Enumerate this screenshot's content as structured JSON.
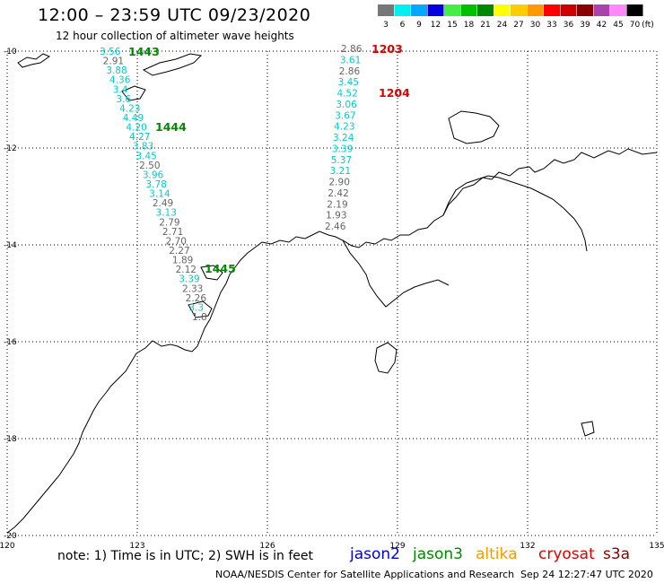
{
  "header": {
    "title": "12:00 – 23:59 UTC 09/23/2020",
    "subtitle": "12 hour collection of altimeter wave heights"
  },
  "legend": {
    "scale": [
      {
        "label": "3",
        "color": "#777777"
      },
      {
        "label": "6",
        "color": "#00f0f0"
      },
      {
        "label": "9",
        "color": "#00a8ff"
      },
      {
        "label": "12",
        "color": "#0000e0"
      },
      {
        "label": "15",
        "color": "#44ee44"
      },
      {
        "label": "18",
        "color": "#00c000"
      },
      {
        "label": "21",
        "color": "#008800"
      },
      {
        "label": "24",
        "color": "#ffff00"
      },
      {
        "label": "27",
        "color": "#ffcc00"
      },
      {
        "label": "30",
        "color": "#ff9900"
      },
      {
        "label": "33",
        "color": "#ff0000"
      },
      {
        "label": "36",
        "color": "#cc0000"
      },
      {
        "label": "39",
        "color": "#880000"
      },
      {
        "label": "42",
        "color": "#aa44aa"
      },
      {
        "label": "45",
        "color": "#ff88ff"
      },
      {
        "label": "70",
        "color": "#000000"
      }
    ],
    "unit": "(ft)"
  },
  "axes": {
    "lat_labels": [
      "-10",
      "-12",
      "-14",
      "-16",
      "-18",
      "-20"
    ],
    "lon_labels": [
      "120",
      "123",
      "126",
      "129",
      "132",
      "135"
    ]
  },
  "tracks": [
    {
      "id": "west",
      "points": [
        {
          "v": "3.56",
          "c": "#00cccc"
        },
        {
          "v": "2.91",
          "c": "#666666"
        },
        {
          "v": "3.88",
          "c": "#00cccc"
        },
        {
          "v": "4.36",
          "c": "#00cccc"
        },
        {
          "v": "3.4",
          "c": "#00cccc"
        },
        {
          "v": "3.6",
          "c": "#00cccc"
        },
        {
          "v": "4.23",
          "c": "#00cccc"
        },
        {
          "v": "4.49",
          "c": "#00cccc"
        },
        {
          "v": "4.20",
          "c": "#00cccc"
        },
        {
          "v": "4.27",
          "c": "#00cccc"
        },
        {
          "v": "3.83",
          "c": "#00cccc"
        },
        {
          "v": "3.45",
          "c": "#00cccc"
        },
        {
          "v": "2.50",
          "c": "#666666"
        },
        {
          "v": "3.96",
          "c": "#00cccc"
        },
        {
          "v": "3.78",
          "c": "#00cccc"
        },
        {
          "v": "3.14",
          "c": "#00cccc"
        },
        {
          "v": "2.49",
          "c": "#666666"
        },
        {
          "v": "3.13",
          "c": "#00cccc"
        },
        {
          "v": "2.79",
          "c": "#666666"
        },
        {
          "v": "2.71",
          "c": "#666666"
        },
        {
          "v": "2.70",
          "c": "#666666"
        },
        {
          "v": "2.27",
          "c": "#666666"
        },
        {
          "v": "1.89",
          "c": "#666666"
        },
        {
          "v": "2.12",
          "c": "#666666"
        },
        {
          "v": "3.39",
          "c": "#00cccc"
        },
        {
          "v": "2.33",
          "c": "#666666"
        },
        {
          "v": "2.26",
          "c": "#666666"
        },
        {
          "v": "3.3",
          "c": "#00cccc"
        },
        {
          "v": "1.8",
          "c": "#666666"
        }
      ]
    },
    {
      "id": "east",
      "points": [
        {
          "v": "2.86",
          "c": "#666666"
        },
        {
          "v": "3.61",
          "c": "#00cccc"
        },
        {
          "v": "2.86",
          "c": "#666666"
        },
        {
          "v": "3.45",
          "c": "#00cccc"
        },
        {
          "v": "4.52",
          "c": "#00cccc"
        },
        {
          "v": "3.06",
          "c": "#00cccc"
        },
        {
          "v": "3.67",
          "c": "#00cccc"
        },
        {
          "v": "4.23",
          "c": "#00cccc"
        },
        {
          "v": "3.24",
          "c": "#00cccc"
        },
        {
          "v": "3.39",
          "c": "#00cccc"
        },
        {
          "v": "5.37",
          "c": "#00cccc"
        },
        {
          "v": "3.21",
          "c": "#00cccc"
        },
        {
          "v": "2.90",
          "c": "#666666"
        },
        {
          "v": "2.42",
          "c": "#666666"
        },
        {
          "v": "2.19",
          "c": "#666666"
        },
        {
          "v": "1.93",
          "c": "#666666"
        },
        {
          "v": "2.46",
          "c": "#666666"
        }
      ]
    }
  ],
  "time_labels": [
    {
      "text": "1443",
      "color": "#008800"
    },
    {
      "text": "1444",
      "color": "#008800"
    },
    {
      "text": "1445",
      "color": "#008800"
    },
    {
      "text": "1203",
      "color": "#dd0000"
    },
    {
      "text": "1204",
      "color": "#dd0000"
    }
  ],
  "footer": {
    "note": "note:  1) Time is in UTC;  2) SWH is in feet",
    "satellites": [
      {
        "name": "jason2",
        "color": "#0000dd"
      },
      {
        "name": "jason3",
        "color": "#008800"
      },
      {
        "name": "altika",
        "color": "#ff9900"
      },
      {
        "name": "cryosat",
        "color": "#dd0000"
      },
      {
        "name": "s3a",
        "color": "#880000"
      }
    ],
    "credit": "NOAA/NESDIS Center for Satellite Applications and Research",
    "timestamp": "Sep 24 12:27:47 UTC 2020"
  }
}
